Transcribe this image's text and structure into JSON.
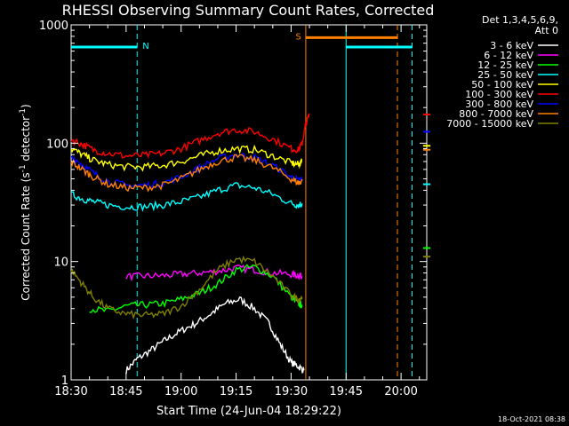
{
  "chart_data": {
    "type": "line",
    "title": "RHESSI Observing Summary Count Rates, Corrected",
    "xlabel": "Start Time (24-Jun-04 18:29:22)",
    "ylabel_main": "Corrected Count Rate (s",
    "ylabel_sup1": "-1",
    "ylabel_mid": " detector",
    "ylabel_sup2": "-1",
    "ylabel_end": ")",
    "yscale": "log",
    "ylim": [
      1,
      1000
    ],
    "xlim_minutes": [
      0,
      97
    ],
    "x_ticks": [
      {
        "m": 0,
        "label": "18:30"
      },
      {
        "m": 15,
        "label": "18:45"
      },
      {
        "m": 30,
        "label": "19:00"
      },
      {
        "m": 45,
        "label": "19:15"
      },
      {
        "m": 60,
        "label": "19:30"
      },
      {
        "m": 75,
        "label": "19:45"
      },
      {
        "m": 90,
        "label": "20:00"
      }
    ],
    "y_ticks": [
      {
        "v": 1,
        "label": "1"
      },
      {
        "v": 10,
        "label": "10"
      },
      {
        "v": 100,
        "label": "100"
      },
      {
        "v": 1000,
        "label": "1000"
      }
    ],
    "legend_title": "Det 1,3,4,5,6,9,",
    "legend_subtitle": "Att 0",
    "legend_position": "top-right outside",
    "series": [
      {
        "name": "3 - 6 keV",
        "color": "#ffffff",
        "x": [
          15,
          18,
          22,
          26,
          30,
          34,
          38,
          42,
          46,
          50,
          54,
          57,
          60,
          62,
          63.5
        ],
        "y": [
          1.2,
          1.5,
          1.8,
          2.2,
          2.6,
          3.0,
          3.6,
          4.4,
          4.8,
          4.0,
          3.0,
          2.0,
          1.4,
          1.3,
          1.2
        ]
      },
      {
        "name": "6 - 12 keV",
        "color": "#ff00ff",
        "x": [
          15,
          20,
          25,
          30,
          35,
          40,
          45,
          50,
          55,
          60,
          62,
          63
        ],
        "y": [
          7.5,
          7.5,
          7.6,
          7.8,
          8.0,
          8.3,
          8.8,
          8.5,
          8.0,
          7.8,
          7.6,
          7.5
        ]
      },
      {
        "name": "12 - 25 keV",
        "color": "#00ff00",
        "x": [
          5,
          10,
          15,
          20,
          25,
          30,
          35,
          40,
          45,
          50,
          55,
          60,
          62,
          63
        ],
        "y": [
          4.0,
          3.8,
          4.2,
          4.3,
          4.4,
          4.8,
          5.4,
          6.5,
          8.5,
          9.0,
          7.5,
          5.0,
          4.4,
          4.3
        ]
      },
      {
        "name": "25 - 50 keV",
        "color": "#00ffff",
        "x": [
          0,
          3,
          6,
          10,
          15,
          20,
          25,
          30,
          35,
          40,
          45,
          50,
          55,
          60,
          62,
          63
        ],
        "y": [
          37,
          34,
          32,
          30,
          29,
          29,
          30,
          32,
          35,
          40,
          44,
          42,
          37,
          31,
          30,
          31
        ]
      },
      {
        "name": "50 - 100 keV",
        "color": "#ffff00",
        "x": [
          0,
          3,
          6,
          10,
          15,
          20,
          25,
          30,
          35,
          40,
          45,
          50,
          55,
          60,
          62,
          63
        ],
        "y": [
          90,
          80,
          72,
          66,
          63,
          63,
          65,
          70,
          78,
          86,
          90,
          88,
          78,
          68,
          66,
          70
        ]
      },
      {
        "name": "100 - 300 keV",
        "color": "#ff0000",
        "x": [
          0,
          3,
          6,
          10,
          15,
          20,
          25,
          30,
          35,
          40,
          45,
          50,
          55,
          60,
          62,
          63,
          64,
          65
        ],
        "y": [
          108,
          98,
          88,
          82,
          78,
          79,
          82,
          90,
          105,
          122,
          130,
          125,
          108,
          90,
          88,
          100,
          145,
          175
        ]
      },
      {
        "name": "300 - 800 keV",
        "color": "#0000ff",
        "x": [
          0,
          3,
          6,
          10,
          15,
          20,
          25,
          30,
          35,
          40,
          45,
          50,
          55,
          60,
          62,
          63
        ],
        "y": [
          78,
          66,
          56,
          48,
          44,
          44,
          46,
          52,
          62,
          74,
          80,
          76,
          65,
          52,
          48,
          50
        ]
      },
      {
        "name": "800 - 7000 keV",
        "color": "#ff8000",
        "x": [
          0,
          3,
          6,
          10,
          15,
          20,
          25,
          30,
          35,
          40,
          45,
          50,
          55,
          60,
          62,
          63
        ],
        "y": [
          70,
          60,
          52,
          45,
          42,
          42,
          44,
          50,
          60,
          70,
          76,
          72,
          62,
          50,
          46,
          48
        ]
      },
      {
        "name": "7000 - 15000 keV",
        "color": "#808000",
        "x": [
          0,
          3,
          6,
          10,
          15,
          20,
          25,
          30,
          35,
          40,
          45,
          50,
          55,
          60,
          62,
          63
        ],
        "y": [
          8.5,
          6.5,
          5.0,
          4.0,
          3.6,
          3.5,
          3.6,
          4.2,
          5.8,
          8.5,
          10.5,
          10.0,
          7.5,
          5.2,
          4.8,
          5.0
        ]
      }
    ],
    "right_segment": {
      "x_range": [
        96,
        98
      ],
      "points": [
        {
          "series": "100 - 300 keV",
          "y": 175
        },
        {
          "series": "300 - 800 keV",
          "y": 125
        },
        {
          "series": "50 - 100 keV",
          "y": 95
        },
        {
          "series": "800 - 7000 keV",
          "y": 88
        },
        {
          "series": "25 - 50 keV",
          "y": 45
        },
        {
          "series": "12 - 25 keV",
          "y": 13
        },
        {
          "series": "7000 - 15000 keV",
          "y": 11
        }
      ]
    },
    "flags": [
      {
        "label": "N",
        "color": "#00ffff",
        "x_start": 0,
        "x_end": 18,
        "y": 650
      },
      {
        "label": "S",
        "color": "#ff8000",
        "x_start": 64,
        "x_end": 89,
        "y": 780
      },
      {
        "label": "",
        "color": "#00ffff",
        "x_start": 75,
        "x_end": 93,
        "y": 650
      }
    ],
    "vertical_lines": [
      {
        "x": 18,
        "color": "#00ffff",
        "style": "dashed"
      },
      {
        "x": 64,
        "color": "#ff8000",
        "style": "solid"
      },
      {
        "x": 75,
        "color": "#00ffff",
        "style": "solid"
      },
      {
        "x": 89,
        "color": "#ff8000",
        "style": "dashed"
      },
      {
        "x": 93,
        "color": "#00ffff",
        "style": "dashed"
      }
    ]
  },
  "footer": {
    "timestamp": "18-Oct-2021 08:38"
  }
}
